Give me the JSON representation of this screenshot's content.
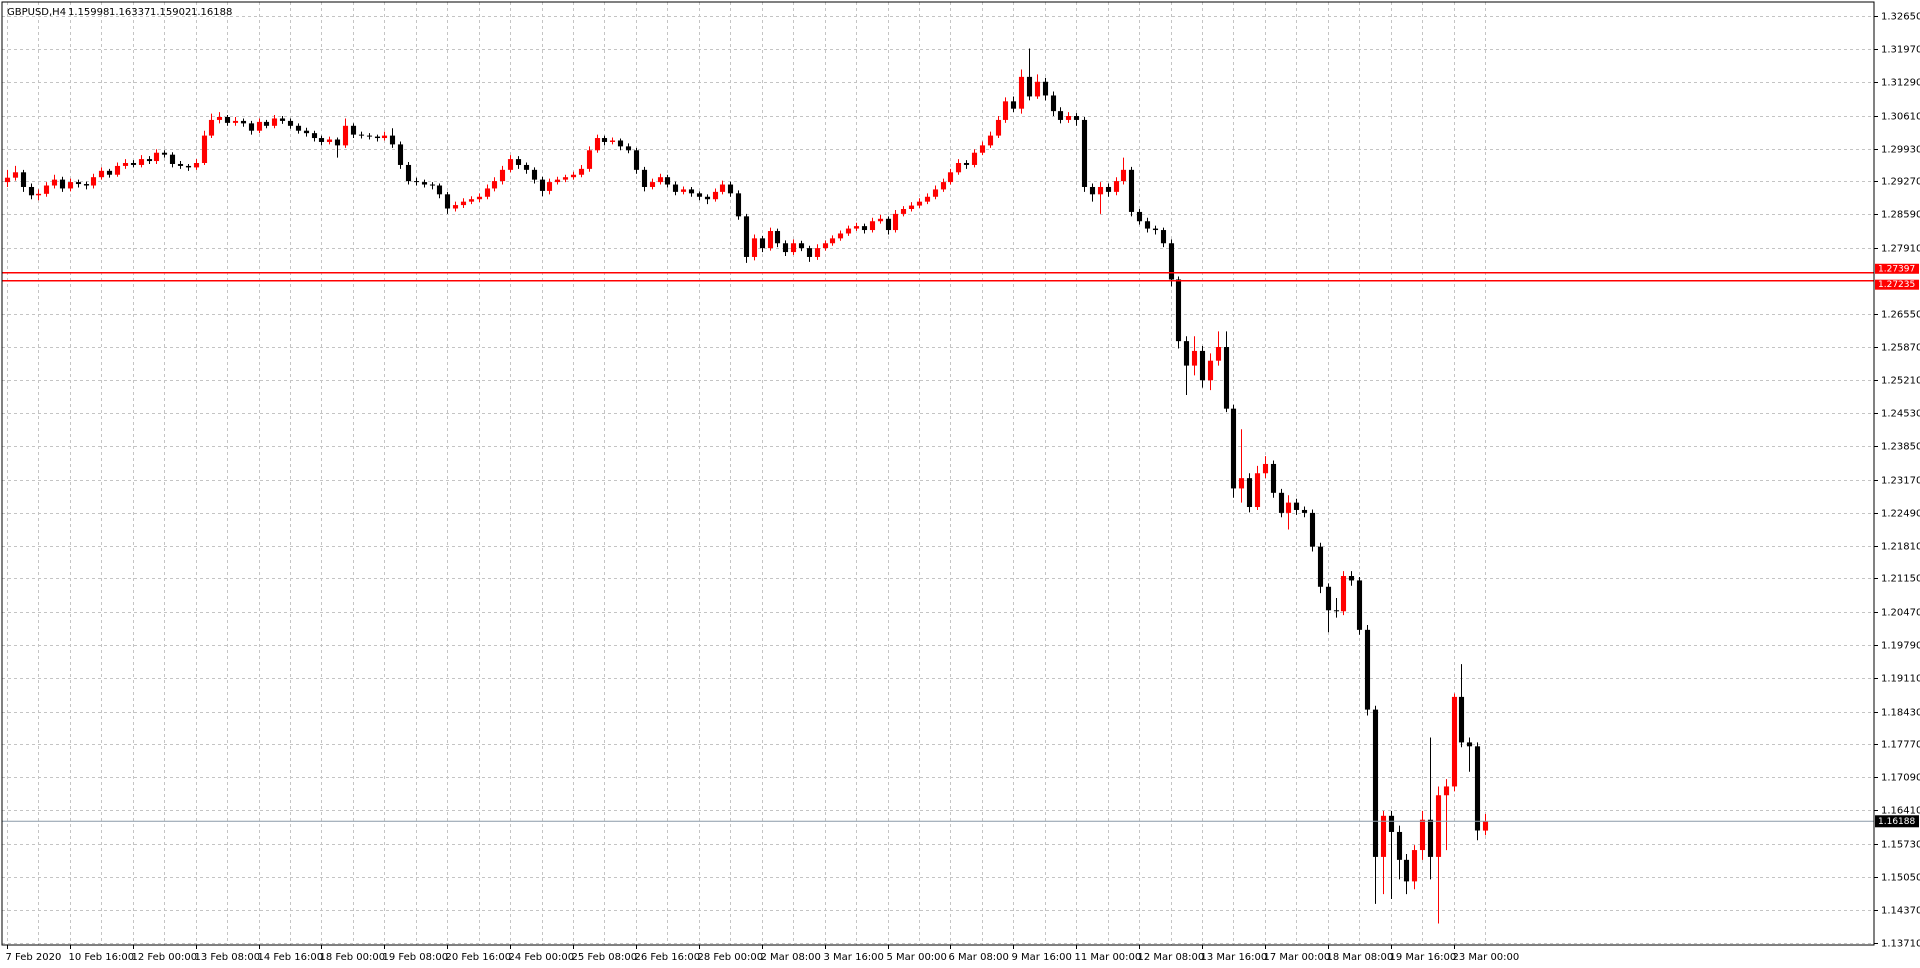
{
  "chart_data": {
    "type": "candlestick",
    "title": "GBPUSD,H4",
    "up_color": "#ff0000",
    "down_color": "#000000",
    "level_color": "#ff0000",
    "price_line_color": "#8c9aa8",
    "grid": true,
    "ylim": [
      1.1366,
      1.3293
    ],
    "yticks": [
      {
        "value": 1.3265,
        "label": "1.32650"
      },
      {
        "value": 1.3197,
        "label": "1.31970"
      },
      {
        "value": 1.3129,
        "label": "1.31290"
      },
      {
        "value": 1.3061,
        "label": "1.30610"
      },
      {
        "value": 1.2993,
        "label": "1.29930"
      },
      {
        "value": 1.2927,
        "label": "1.29270"
      },
      {
        "value": 1.2859,
        "label": "1.28590"
      },
      {
        "value": 1.2791,
        "label": "1.27910"
      },
      {
        "value": 1.2655,
        "label": "1.26550"
      },
      {
        "value": 1.2587,
        "label": "1.25870"
      },
      {
        "value": 1.2521,
        "label": "1.25210"
      },
      {
        "value": 1.2453,
        "label": "1.24530"
      },
      {
        "value": 1.2385,
        "label": "1.23850"
      },
      {
        "value": 1.2317,
        "label": "1.23170"
      },
      {
        "value": 1.2249,
        "label": "1.22490"
      },
      {
        "value": 1.2181,
        "label": "1.21810"
      },
      {
        "value": 1.2115,
        "label": "1.21150"
      },
      {
        "value": 1.2047,
        "label": "1.20470"
      },
      {
        "value": 1.1979,
        "label": "1.19790"
      },
      {
        "value": 1.1911,
        "label": "1.19110"
      },
      {
        "value": 1.1843,
        "label": "1.18430"
      },
      {
        "value": 1.1777,
        "label": "1.17770"
      },
      {
        "value": 1.1709,
        "label": "1.17090"
      },
      {
        "value": 1.1641,
        "label": "1.16410"
      },
      {
        "value": 1.1573,
        "label": "1.15730"
      },
      {
        "value": 1.1505,
        "label": "1.15050"
      },
      {
        "value": 1.1437,
        "label": "1.14370"
      },
      {
        "value": 1.1371,
        "label": "1.13710"
      }
    ],
    "levels": [
      1.27397,
      1.27235
    ],
    "categories": [
      "7 Feb 2020",
      null,
      null,
      null,
      null,
      null,
      null,
      null,
      "10 Feb 16:00",
      null,
      null,
      null,
      null,
      null,
      null,
      null,
      "12 Feb 00:00",
      null,
      null,
      null,
      null,
      null,
      null,
      null,
      "13 Feb 08:00",
      null,
      null,
      null,
      null,
      null,
      null,
      null,
      "14 Feb 16:00",
      null,
      null,
      null,
      null,
      null,
      null,
      null,
      "18 Feb 00:00",
      null,
      null,
      null,
      null,
      null,
      null,
      null,
      "19 Feb 08:00",
      null,
      null,
      null,
      null,
      null,
      null,
      null,
      "20 Feb 16:00",
      null,
      null,
      null,
      null,
      null,
      null,
      null,
      "24 Feb 00:00",
      null,
      null,
      null,
      null,
      null,
      null,
      null,
      "25 Feb 08:00",
      null,
      null,
      null,
      null,
      null,
      null,
      null,
      "26 Feb 16:00",
      null,
      null,
      null,
      null,
      null,
      null,
      null,
      "28 Feb 00:00",
      null,
      null,
      null,
      null,
      null,
      null,
      null,
      "2 Mar 08:00",
      null,
      null,
      null,
      null,
      null,
      null,
      null,
      "3 Mar 16:00",
      null,
      null,
      null,
      null,
      null,
      null,
      null,
      "5 Mar 00:00",
      null,
      null,
      null,
      null,
      null,
      null,
      null,
      "6 Mar 08:00",
      null,
      null,
      null,
      null,
      null,
      null,
      null,
      "9 Mar 16:00",
      null,
      null,
      null,
      null,
      null,
      null,
      null,
      "11 Mar 00:00",
      null,
      null,
      null,
      null,
      null,
      null,
      null,
      "12 Mar 08:00",
      null,
      null,
      null,
      null,
      null,
      null,
      null,
      "13 Mar 16:00",
      null,
      null,
      null,
      null,
      null,
      null,
      null,
      "17 Mar 00:00",
      null,
      null,
      null,
      null,
      null,
      null,
      null,
      "18 Mar 08:00",
      null,
      null,
      null,
      null,
      null,
      null,
      null,
      "19 Mar 16:00",
      null,
      null,
      null,
      null,
      null,
      null,
      null,
      "23 Mar 00:00",
      null,
      null,
      null,
      null
    ],
    "candles": [
      [
        1.2925,
        1.295,
        1.2915,
        1.2934
      ],
      [
        1.2934,
        1.2958,
        1.2928,
        1.2945
      ],
      [
        1.2945,
        1.295,
        1.2905,
        1.2915
      ],
      [
        1.2915,
        1.2922,
        1.289,
        1.2898
      ],
      [
        1.2898,
        1.291,
        1.2888,
        1.2901
      ],
      [
        1.2901,
        1.2925,
        1.2895,
        1.2918
      ],
      [
        1.2918,
        1.294,
        1.2912,
        1.293
      ],
      [
        1.293,
        1.2936,
        1.2905,
        1.2912
      ],
      [
        1.2912,
        1.2932,
        1.2906,
        1.2925
      ],
      [
        1.2925,
        1.293,
        1.2914,
        1.2921
      ],
      [
        1.2921,
        1.2926,
        1.291,
        1.2918
      ],
      [
        1.2918,
        1.2942,
        1.2912,
        1.2935
      ],
      [
        1.2935,
        1.2955,
        1.293,
        1.2948
      ],
      [
        1.2948,
        1.2952,
        1.2934,
        1.294
      ],
      [
        1.294,
        1.2965,
        1.2936,
        1.2958
      ],
      [
        1.2958,
        1.2972,
        1.2952,
        1.2964
      ],
      [
        1.2964,
        1.297,
        1.2955,
        1.296
      ],
      [
        1.296,
        1.298,
        1.2955,
        1.2972
      ],
      [
        1.2972,
        1.2978,
        1.2962,
        1.2968
      ],
      [
        1.2968,
        1.2992,
        1.2962,
        1.2985
      ],
      [
        1.2985,
        1.299,
        1.2975,
        1.2981
      ],
      [
        1.2981,
        1.2986,
        1.2955,
        1.2962
      ],
      [
        1.2962,
        1.2968,
        1.2952,
        1.2958
      ],
      [
        1.2958,
        1.2962,
        1.2948,
        1.2955
      ],
      [
        1.2955,
        1.2972,
        1.295,
        1.2964
      ],
      [
        1.2964,
        1.303,
        1.296,
        1.302
      ],
      [
        1.302,
        1.3065,
        1.3015,
        1.3052
      ],
      [
        1.3052,
        1.3068,
        1.3045,
        1.3058
      ],
      [
        1.3058,
        1.3062,
        1.304,
        1.3046
      ],
      [
        1.3046,
        1.3058,
        1.304,
        1.305
      ],
      [
        1.305,
        1.3055,
        1.3038,
        1.3045
      ],
      [
        1.3045,
        1.305,
        1.3022,
        1.303
      ],
      [
        1.303,
        1.3055,
        1.3025,
        1.3048
      ],
      [
        1.3048,
        1.3052,
        1.3035,
        1.304
      ],
      [
        1.304,
        1.3062,
        1.3035,
        1.3055
      ],
      [
        1.3055,
        1.306,
        1.3044,
        1.305
      ],
      [
        1.305,
        1.3055,
        1.3034,
        1.304
      ],
      [
        1.304,
        1.3045,
        1.3024,
        1.303
      ],
      [
        1.303,
        1.3036,
        1.3018,
        1.3025
      ],
      [
        1.3025,
        1.303,
        1.3008,
        1.3015
      ],
      [
        1.3015,
        1.302,
        1.3,
        1.3007
      ],
      [
        1.3007,
        1.3018,
        1.3002,
        1.3012
      ],
      [
        1.3012,
        1.3016,
        1.2975,
        1.3
      ],
      [
        1.3,
        1.3055,
        1.2995,
        1.304
      ],
      [
        1.304,
        1.3045,
        1.3015,
        1.3022
      ],
      [
        1.3022,
        1.3028,
        1.3014,
        1.302
      ],
      [
        1.302,
        1.3025,
        1.3012,
        1.3018
      ],
      [
        1.3018,
        1.3022,
        1.3008,
        1.3015
      ],
      [
        1.3015,
        1.3028,
        1.301,
        1.302
      ],
      [
        1.302,
        1.3035,
        1.2995,
        1.3002
      ],
      [
        1.3002,
        1.3008,
        1.2952,
        1.296
      ],
      [
        1.296,
        1.2966,
        1.292,
        1.2927
      ],
      [
        1.2927,
        1.2934,
        1.2918,
        1.2925
      ],
      [
        1.2925,
        1.293,
        1.2914,
        1.292
      ],
      [
        1.292,
        1.2925,
        1.291,
        1.2918
      ],
      [
        1.2918,
        1.2922,
        1.2892,
        1.29
      ],
      [
        1.29,
        1.2905,
        1.286,
        1.2871
      ],
      [
        1.2871,
        1.2885,
        1.2865,
        1.2878
      ],
      [
        1.2878,
        1.2892,
        1.2872,
        1.2885
      ],
      [
        1.2885,
        1.2896,
        1.288,
        1.289
      ],
      [
        1.289,
        1.2902,
        1.2884,
        1.2895
      ],
      [
        1.2895,
        1.292,
        1.289,
        1.2912
      ],
      [
        1.2912,
        1.2935,
        1.2906,
        1.2927
      ],
      [
        1.2927,
        1.2958,
        1.292,
        1.295
      ],
      [
        1.295,
        1.298,
        1.2945,
        1.2972
      ],
      [
        1.2972,
        1.2978,
        1.2952,
        1.296
      ],
      [
        1.296,
        1.2965,
        1.2942,
        1.295
      ],
      [
        1.295,
        1.2955,
        1.2922,
        1.293
      ],
      [
        1.293,
        1.2936,
        1.2896,
        1.2907
      ],
      [
        1.2907,
        1.2932,
        1.29,
        1.2925
      ],
      [
        1.2925,
        1.2936,
        1.292,
        1.293
      ],
      [
        1.293,
        1.294,
        1.2925,
        1.2935
      ],
      [
        1.2935,
        1.2946,
        1.293,
        1.294
      ],
      [
        1.294,
        1.296,
        1.2935,
        1.2952
      ],
      [
        1.2952,
        1.2998,
        1.2946,
        1.299
      ],
      [
        1.299,
        1.3022,
        1.2985,
        1.3015
      ],
      [
        1.3015,
        1.302,
        1.3,
        1.3007
      ],
      [
        1.3007,
        1.3016,
        1.3002,
        1.301
      ],
      [
        1.301,
        1.3014,
        1.299,
        1.2998
      ],
      [
        1.2998,
        1.3004,
        1.2984,
        1.299
      ],
      [
        1.299,
        1.2995,
        1.2942,
        1.295
      ],
      [
        1.295,
        1.2956,
        1.2906,
        1.2915
      ],
      [
        1.2915,
        1.2932,
        1.291,
        1.2925
      ],
      [
        1.2925,
        1.2942,
        1.292,
        1.2935
      ],
      [
        1.2935,
        1.294,
        1.2914,
        1.292
      ],
      [
        1.292,
        1.2926,
        1.2898,
        1.2905
      ],
      [
        1.2905,
        1.2916,
        1.29,
        1.291
      ],
      [
        1.291,
        1.2915,
        1.2895,
        1.2902
      ],
      [
        1.2902,
        1.2906,
        1.2888,
        1.2895
      ],
      [
        1.2895,
        1.29,
        1.288,
        1.289
      ],
      [
        1.289,
        1.2912,
        1.2885,
        1.2905
      ],
      [
        1.2905,
        1.2928,
        1.29,
        1.292
      ],
      [
        1.292,
        1.2926,
        1.2895,
        1.2902
      ],
      [
        1.2902,
        1.2908,
        1.2848,
        1.2855
      ],
      [
        1.2855,
        1.286,
        1.276,
        1.2772
      ],
      [
        1.2772,
        1.2818,
        1.2765,
        1.281
      ],
      [
        1.281,
        1.2815,
        1.2782,
        1.279
      ],
      [
        1.279,
        1.2832,
        1.2785,
        1.2825
      ],
      [
        1.2825,
        1.283,
        1.2792,
        1.28
      ],
      [
        1.28,
        1.2806,
        1.2774,
        1.2782
      ],
      [
        1.2782,
        1.2808,
        1.2776,
        1.28
      ],
      [
        1.28,
        1.2805,
        1.2784,
        1.279
      ],
      [
        1.279,
        1.2795,
        1.2762,
        1.2772
      ],
      [
        1.2772,
        1.2798,
        1.2766,
        1.279
      ],
      [
        1.279,
        1.2806,
        1.2785,
        1.28
      ],
      [
        1.28,
        1.2816,
        1.2795,
        1.281
      ],
      [
        1.281,
        1.2826,
        1.2805,
        1.282
      ],
      [
        1.282,
        1.2836,
        1.2815,
        1.283
      ],
      [
        1.283,
        1.2842,
        1.2825,
        1.2835
      ],
      [
        1.2835,
        1.284,
        1.282,
        1.2827
      ],
      [
        1.2827,
        1.2852,
        1.2822,
        1.2845
      ],
      [
        1.2845,
        1.2858,
        1.284,
        1.285
      ],
      [
        1.285,
        1.2855,
        1.2818,
        1.2827
      ],
      [
        1.2827,
        1.2868,
        1.2822,
        1.286
      ],
      [
        1.286,
        1.2876,
        1.2855,
        1.287
      ],
      [
        1.287,
        1.2884,
        1.2865,
        1.2877
      ],
      [
        1.2877,
        1.2892,
        1.2872,
        1.2885
      ],
      [
        1.2885,
        1.2902,
        1.288,
        1.2895
      ],
      [
        1.2895,
        1.2918,
        1.289,
        1.291
      ],
      [
        1.291,
        1.2932,
        1.2905,
        1.2925
      ],
      [
        1.2925,
        1.2952,
        1.292,
        1.2945
      ],
      [
        1.2945,
        1.2972,
        1.294,
        1.2964
      ],
      [
        1.2964,
        1.297,
        1.2952,
        1.296
      ],
      [
        1.296,
        1.2992,
        1.2955,
        1.2985
      ],
      [
        1.2985,
        1.3008,
        1.298,
        1.3
      ],
      [
        1.3,
        1.3028,
        1.2995,
        1.302
      ],
      [
        1.302,
        1.306,
        1.3015,
        1.3052
      ],
      [
        1.3052,
        1.3098,
        1.3046,
        1.309
      ],
      [
        1.309,
        1.31,
        1.3068,
        1.3075
      ],
      [
        1.3075,
        1.3155,
        1.3065,
        1.314
      ],
      [
        1.314,
        1.3198,
        1.3092,
        1.31
      ],
      [
        1.31,
        1.3145,
        1.3095,
        1.313
      ],
      [
        1.313,
        1.3138,
        1.3092,
        1.3102
      ],
      [
        1.3102,
        1.311,
        1.306,
        1.307
      ],
      [
        1.307,
        1.3078,
        1.3045,
        1.3052
      ],
      [
        1.3052,
        1.3068,
        1.3046,
        1.306
      ],
      [
        1.306,
        1.3066,
        1.304,
        1.3052
      ],
      [
        1.3052,
        1.3058,
        1.2905,
        1.2915
      ],
      [
        1.2915,
        1.2922,
        1.2885,
        1.29
      ],
      [
        1.29,
        1.2925,
        1.286,
        1.2915
      ],
      [
        1.2915,
        1.2922,
        1.2895,
        1.2905
      ],
      [
        1.2905,
        1.2935,
        1.2898,
        1.2927
      ],
      [
        1.2927,
        1.2975,
        1.292,
        1.295
      ],
      [
        1.295,
        1.2956,
        1.2855,
        1.2864
      ],
      [
        1.2864,
        1.287,
        1.2838,
        1.2845
      ],
      [
        1.2845,
        1.2852,
        1.2822,
        1.283
      ],
      [
        1.283,
        1.2836,
        1.2818,
        1.2827
      ],
      [
        1.2827,
        1.2832,
        1.2792,
        1.28
      ],
      [
        1.28,
        1.2808,
        1.2712,
        1.2726
      ],
      [
        1.2726,
        1.2732,
        1.2585,
        1.26
      ],
      [
        1.26,
        1.261,
        1.249,
        1.255
      ],
      [
        1.255,
        1.261,
        1.253,
        1.258
      ],
      [
        1.258,
        1.259,
        1.2505,
        1.252
      ],
      [
        1.252,
        1.2575,
        1.25,
        1.256
      ],
      [
        1.256,
        1.262,
        1.255,
        1.2588
      ],
      [
        1.2588,
        1.262,
        1.2455,
        1.2462
      ],
      [
        1.2462,
        1.247,
        1.228,
        1.2299
      ],
      [
        1.2299,
        1.242,
        1.227,
        1.232
      ],
      [
        1.232,
        1.233,
        1.225,
        1.2261
      ],
      [
        1.2261,
        1.2345,
        1.2255,
        1.233
      ],
      [
        1.233,
        1.2365,
        1.232,
        1.2349
      ],
      [
        1.2349,
        1.2356,
        1.228,
        1.229
      ],
      [
        1.229,
        1.2298,
        1.224,
        1.2249
      ],
      [
        1.2249,
        1.2285,
        1.2215,
        1.227
      ],
      [
        1.227,
        1.2278,
        1.2245,
        1.2255
      ],
      [
        1.2255,
        1.2262,
        1.224,
        1.2249
      ],
      [
        1.2249,
        1.2256,
        1.217,
        1.218
      ],
      [
        1.218,
        1.2188,
        1.2085,
        1.2098
      ],
      [
        1.2098,
        1.2105,
        1.2005,
        1.205
      ],
      [
        1.205,
        1.2075,
        1.2035,
        1.2048
      ],
      [
        1.2048,
        1.213,
        1.204,
        1.212
      ],
      [
        1.212,
        1.213,
        1.21,
        1.2111
      ],
      [
        1.2111,
        1.2118,
        1.2,
        1.201
      ],
      [
        1.201,
        1.202,
        1.1835,
        1.1847
      ],
      [
        1.1847,
        1.1855,
        1.145,
        1.1546
      ],
      [
        1.1546,
        1.164,
        1.147,
        1.163
      ],
      [
        1.163,
        1.164,
        1.146,
        1.1597
      ],
      [
        1.1597,
        1.161,
        1.15,
        1.154
      ],
      [
        1.154,
        1.1552,
        1.147,
        1.1496
      ],
      [
        1.1496,
        1.157,
        1.148,
        1.156
      ],
      [
        1.156,
        1.164,
        1.154,
        1.1622
      ],
      [
        1.1622,
        1.179,
        1.15,
        1.1546
      ],
      [
        1.1546,
        1.169,
        1.141,
        1.1672
      ],
      [
        1.1672,
        1.1705,
        1.156,
        1.169
      ],
      [
        1.169,
        1.188,
        1.168,
        1.1873
      ],
      [
        1.1873,
        1.194,
        1.177,
        1.178
      ],
      [
        1.178,
        1.179,
        1.172,
        1.1772
      ],
      [
        1.1772,
        1.178,
        1.158,
        1.16
      ],
      [
        1.15998,
        1.16337,
        1.15902,
        1.16188
      ]
    ]
  }
}
